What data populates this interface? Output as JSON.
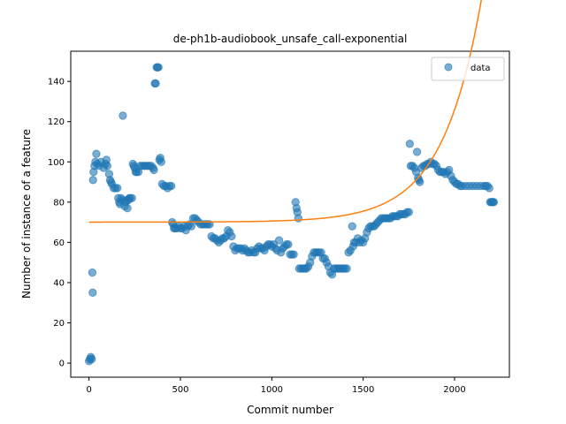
{
  "chart_data": {
    "type": "scatter",
    "title": "de-ph1b-audiobook_unsafe_call-exponential",
    "xlabel": "Commit number",
    "ylabel": "Number of instance of a feature",
    "xlim": [
      -100,
      2300
    ],
    "ylim": [
      -7,
      155
    ],
    "xticks": [
      0,
      500,
      1000,
      1500,
      2000
    ],
    "yticks": [
      0,
      20,
      40,
      60,
      80,
      100,
      120,
      140
    ],
    "legend": {
      "position": "top-right",
      "entries": [
        "data"
      ]
    },
    "colors": {
      "data": "#1f77b4",
      "fit": "#ff7f0e"
    },
    "series": [
      {
        "name": "data",
        "kind": "scatter",
        "points": [
          [
            0,
            1
          ],
          [
            5,
            2
          ],
          [
            10,
            3
          ],
          [
            15,
            2
          ],
          [
            18,
            45
          ],
          [
            20,
            35
          ],
          [
            22,
            91
          ],
          [
            25,
            95
          ],
          [
            30,
            98
          ],
          [
            35,
            100
          ],
          [
            40,
            104
          ],
          [
            45,
            99
          ],
          [
            55,
            98
          ],
          [
            65,
            100
          ],
          [
            80,
            97
          ],
          [
            90,
            99
          ],
          [
            95,
            101
          ],
          [
            100,
            98
          ],
          [
            110,
            94
          ],
          [
            115,
            91
          ],
          [
            120,
            90
          ],
          [
            125,
            89
          ],
          [
            135,
            87
          ],
          [
            145,
            87
          ],
          [
            155,
            87
          ],
          [
            160,
            82
          ],
          [
            165,
            80
          ],
          [
            170,
            79
          ],
          [
            175,
            82
          ],
          [
            180,
            81
          ],
          [
            185,
            123
          ],
          [
            195,
            78
          ],
          [
            200,
            80
          ],
          [
            205,
            81
          ],
          [
            210,
            77
          ],
          [
            215,
            81
          ],
          [
            220,
            82
          ],
          [
            225,
            82
          ],
          [
            235,
            82
          ],
          [
            240,
            99
          ],
          [
            245,
            98
          ],
          [
            250,
            97
          ],
          [
            255,
            95
          ],
          [
            260,
            95
          ],
          [
            270,
            95
          ],
          [
            280,
            98
          ],
          [
            290,
            98
          ],
          [
            300,
            98
          ],
          [
            310,
            98
          ],
          [
            320,
            98
          ],
          [
            330,
            98
          ],
          [
            340,
            98
          ],
          [
            350,
            97
          ],
          [
            355,
            96
          ],
          [
            360,
            139
          ],
          [
            365,
            139
          ],
          [
            370,
            147
          ],
          [
            375,
            147
          ],
          [
            380,
            147
          ],
          [
            385,
            101
          ],
          [
            390,
            102
          ],
          [
            395,
            100
          ],
          [
            400,
            89
          ],
          [
            410,
            88
          ],
          [
            420,
            88
          ],
          [
            430,
            87
          ],
          [
            440,
            88
          ],
          [
            450,
            88
          ],
          [
            455,
            70
          ],
          [
            460,
            69
          ],
          [
            465,
            67
          ],
          [
            470,
            67
          ],
          [
            480,
            67
          ],
          [
            490,
            68
          ],
          [
            500,
            67
          ],
          [
            510,
            67
          ],
          [
            520,
            68
          ],
          [
            530,
            66
          ],
          [
            540,
            68
          ],
          [
            550,
            69
          ],
          [
            560,
            68
          ],
          [
            570,
            72
          ],
          [
            580,
            72
          ],
          [
            590,
            71
          ],
          [
            600,
            70
          ],
          [
            610,
            69
          ],
          [
            620,
            69
          ],
          [
            630,
            69
          ],
          [
            640,
            69
          ],
          [
            650,
            69
          ],
          [
            660,
            69
          ],
          [
            670,
            63
          ],
          [
            680,
            62
          ],
          [
            690,
            62
          ],
          [
            700,
            61
          ],
          [
            710,
            60
          ],
          [
            720,
            61
          ],
          [
            730,
            62
          ],
          [
            740,
            62
          ],
          [
            750,
            63
          ],
          [
            760,
            66
          ],
          [
            770,
            65
          ],
          [
            780,
            63
          ],
          [
            790,
            58
          ],
          [
            800,
            56
          ],
          [
            810,
            57
          ],
          [
            820,
            57
          ],
          [
            830,
            57
          ],
          [
            840,
            56
          ],
          [
            850,
            57
          ],
          [
            860,
            56
          ],
          [
            870,
            55
          ],
          [
            880,
            55
          ],
          [
            890,
            56
          ],
          [
            900,
            55
          ],
          [
            910,
            55
          ],
          [
            920,
            57
          ],
          [
            930,
            58
          ],
          [
            940,
            57
          ],
          [
            950,
            57
          ],
          [
            960,
            56
          ],
          [
            970,
            58
          ],
          [
            980,
            59
          ],
          [
            990,
            59
          ],
          [
            1000,
            58
          ],
          [
            1010,
            59
          ],
          [
            1020,
            57
          ],
          [
            1030,
            56
          ],
          [
            1040,
            61
          ],
          [
            1050,
            55
          ],
          [
            1060,
            57
          ],
          [
            1070,
            58
          ],
          [
            1080,
            59
          ],
          [
            1090,
            59
          ],
          [
            1100,
            54
          ],
          [
            1110,
            54
          ],
          [
            1120,
            54
          ],
          [
            1130,
            80
          ],
          [
            1135,
            77
          ],
          [
            1140,
            75
          ],
          [
            1145,
            72
          ],
          [
            1150,
            47
          ],
          [
            1160,
            47
          ],
          [
            1170,
            47
          ],
          [
            1180,
            47
          ],
          [
            1190,
            47
          ],
          [
            1200,
            48
          ],
          [
            1210,
            50
          ],
          [
            1220,
            53
          ],
          [
            1230,
            55
          ],
          [
            1240,
            55
          ],
          [
            1250,
            55
          ],
          [
            1260,
            55
          ],
          [
            1270,
            55
          ],
          [
            1280,
            52
          ],
          [
            1290,
            52
          ],
          [
            1300,
            50
          ],
          [
            1310,
            48
          ],
          [
            1320,
            45
          ],
          [
            1330,
            44
          ],
          [
            1340,
            47
          ],
          [
            1350,
            47
          ],
          [
            1360,
            47
          ],
          [
            1370,
            47
          ],
          [
            1380,
            47
          ],
          [
            1390,
            47
          ],
          [
            1400,
            47
          ],
          [
            1410,
            47
          ],
          [
            1420,
            55
          ],
          [
            1430,
            56
          ],
          [
            1440,
            68
          ],
          [
            1445,
            58
          ],
          [
            1450,
            60
          ],
          [
            1460,
            60
          ],
          [
            1470,
            62
          ],
          [
            1480,
            60
          ],
          [
            1490,
            61
          ],
          [
            1500,
            60
          ],
          [
            1510,
            62
          ],
          [
            1520,
            65
          ],
          [
            1530,
            67
          ],
          [
            1540,
            68
          ],
          [
            1550,
            68
          ],
          [
            1560,
            68
          ],
          [
            1570,
            69
          ],
          [
            1580,
            70
          ],
          [
            1590,
            71
          ],
          [
            1600,
            72
          ],
          [
            1610,
            72
          ],
          [
            1620,
            72
          ],
          [
            1630,
            72
          ],
          [
            1640,
            72
          ],
          [
            1650,
            72
          ],
          [
            1660,
            73
          ],
          [
            1670,
            73
          ],
          [
            1680,
            73
          ],
          [
            1690,
            73
          ],
          [
            1700,
            74
          ],
          [
            1710,
            74
          ],
          [
            1720,
            74
          ],
          [
            1730,
            74
          ],
          [
            1740,
            75
          ],
          [
            1750,
            75
          ],
          [
            1755,
            109
          ],
          [
            1760,
            98
          ],
          [
            1770,
            98
          ],
          [
            1780,
            97
          ],
          [
            1790,
            95
          ],
          [
            1795,
            105
          ],
          [
            1800,
            92
          ],
          [
            1805,
            91
          ],
          [
            1810,
            90
          ],
          [
            1820,
            97
          ],
          [
            1830,
            98
          ],
          [
            1840,
            98
          ],
          [
            1850,
            99
          ],
          [
            1860,
            99
          ],
          [
            1870,
            100
          ],
          [
            1880,
            99
          ],
          [
            1890,
            99
          ],
          [
            1900,
            98
          ],
          [
            1910,
            96
          ],
          [
            1920,
            95
          ],
          [
            1930,
            95
          ],
          [
            1940,
            95
          ],
          [
            1950,
            94
          ],
          [
            1960,
            95
          ],
          [
            1970,
            96
          ],
          [
            1980,
            93
          ],
          [
            1990,
            91
          ],
          [
            2000,
            90
          ],
          [
            2010,
            89
          ],
          [
            2020,
            89
          ],
          [
            2030,
            88
          ],
          [
            2040,
            88
          ],
          [
            2060,
            88
          ],
          [
            2080,
            88
          ],
          [
            2100,
            88
          ],
          [
            2120,
            88
          ],
          [
            2140,
            88
          ],
          [
            2160,
            88
          ],
          [
            2170,
            88
          ],
          [
            2180,
            88
          ],
          [
            2190,
            87
          ],
          [
            2195,
            80
          ],
          [
            2200,
            80
          ],
          [
            2205,
            80
          ],
          [
            2210,
            80
          ],
          [
            2215,
            80
          ]
        ]
      },
      {
        "kind": "line",
        "model": "exponential",
        "params": {
          "a": 70.07,
          "b": 0.005,
          "k": 0.00466
        },
        "x_range": [
          0,
          2215
        ]
      }
    ]
  }
}
